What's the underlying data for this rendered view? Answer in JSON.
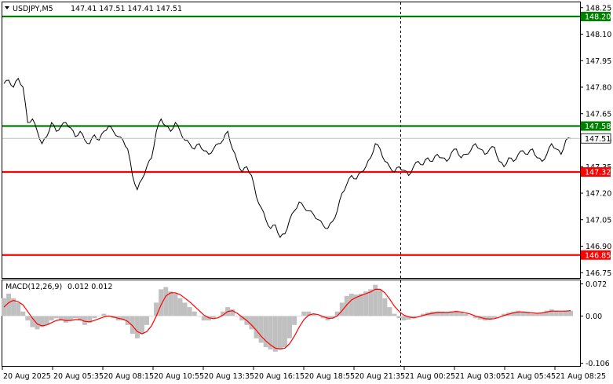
{
  "header": {
    "symbol_info": "USDJPY,M5",
    "ohlc": "147.41 147.51 147.41 147.51"
  },
  "macd": {
    "label": "MACD(12,26,9)",
    "values": "0.012 0.012"
  },
  "colors": {
    "price_line": "#000000",
    "resistance": "#008000",
    "support": "#ff0000",
    "macd_hist": "#c0c0c0",
    "signal": "#ff0000",
    "grid_separator": "#808080"
  },
  "chart_data": [
    {
      "type": "line",
      "title": "USDJPY,M5",
      "ylim": [
        146.72,
        148.28
      ],
      "y_ticks": [
        "148.25",
        "148.10",
        "147.95",
        "147.80",
        "147.65",
        "147.50",
        "147.35",
        "147.20",
        "147.05",
        "146.90",
        "146.75"
      ],
      "x_ticks": [
        "20 Aug 2025",
        "20 Aug 05:35",
        "20 Aug 08:15",
        "20 Aug 10:55",
        "20 Aug 13:35",
        "20 Aug 16:15",
        "20 Aug 18:55",
        "20 Aug 21:35",
        "21 Aug 00:25",
        "21 Aug 03:05",
        "21 Aug 05:45",
        "21 Aug 08:25"
      ],
      "series": [
        {
          "values": [
            147.82,
            147.84,
            147.8,
            147.85,
            147.8,
            147.6,
            147.62,
            147.55,
            147.48,
            147.52,
            147.6,
            147.55,
            147.58,
            147.6,
            147.57,
            147.52,
            147.55,
            147.5,
            147.48,
            147.53,
            147.5,
            147.55,
            147.58,
            147.55,
            147.52,
            147.5,
            147.45,
            147.3,
            147.22,
            147.28,
            147.35,
            147.4,
            147.55,
            147.62,
            147.58,
            147.55,
            147.6,
            147.55,
            147.5,
            147.48,
            147.45,
            147.48,
            147.44,
            147.42,
            147.45,
            147.48,
            147.5,
            147.55,
            147.45,
            147.38,
            147.32,
            147.35,
            147.3,
            147.18,
            147.12,
            147.05,
            147.0,
            147.02,
            146.95,
            146.97,
            147.05,
            147.1,
            147.15,
            147.12,
            147.1,
            147.08,
            147.05,
            147.02,
            147.0,
            147.04,
            147.1,
            147.2,
            147.25,
            147.3,
            147.28,
            147.32,
            147.35,
            147.4,
            147.48,
            147.45,
            147.38,
            147.35,
            147.32,
            147.35,
            147.33,
            147.3,
            147.35,
            147.38,
            147.36,
            147.4,
            147.38,
            147.42,
            147.4,
            147.38,
            147.43,
            147.45,
            147.4,
            147.42,
            147.44,
            147.48,
            147.45,
            147.42,
            147.45,
            147.46,
            147.38,
            147.35,
            147.4,
            147.38,
            147.42,
            147.44,
            147.42,
            147.45,
            147.4,
            147.38,
            147.42,
            147.48,
            147.45,
            147.42,
            147.5,
            147.51
          ],
          "highlights": [
            147.3,
            147.55,
            147.22,
            147.66,
            147.52,
            147.32,
            146.95,
            147.02,
            147.5,
            147.28,
            147.46,
            147.51
          ]
        }
      ],
      "levels": [
        {
          "label": "148.20",
          "value": 148.2,
          "color": "#008000"
        },
        {
          "label": "147.58",
          "value": 147.58,
          "color": "#008000"
        },
        {
          "label": "147.32",
          "value": 147.32,
          "color": "#ff0000"
        },
        {
          "label": "146.85",
          "value": 146.85,
          "color": "#ff0000"
        }
      ],
      "current_price_label": "147.51",
      "current_price": 147.51
    },
    {
      "type": "bar",
      "title": "MACD(12,26,9)",
      "ylim": [
        -0.112,
        0.08
      ],
      "y_ticks": [
        "0.072",
        "0.00",
        "-0.106"
      ],
      "series": [
        {
          "name": "histogram",
          "values": [
            0.04,
            0.05,
            0.04,
            0.03,
            0.01,
            -0.01,
            -0.025,
            -0.03,
            -0.025,
            -0.02,
            -0.01,
            -0.005,
            -0.01,
            -0.015,
            -0.01,
            -0.005,
            -0.01,
            -0.02,
            -0.015,
            -0.005,
            0.0,
            0.005,
            0.0,
            -0.005,
            -0.01,
            -0.01,
            -0.02,
            -0.04,
            -0.05,
            -0.04,
            -0.02,
            0.0,
            0.03,
            0.06,
            0.065,
            0.055,
            0.05,
            0.04,
            0.03,
            0.02,
            0.01,
            0.0,
            -0.01,
            -0.01,
            -0.005,
            0.0,
            0.01,
            0.02,
            0.015,
            0.0,
            -0.01,
            -0.02,
            -0.03,
            -0.05,
            -0.06,
            -0.07,
            -0.075,
            -0.08,
            -0.075,
            -0.07,
            -0.05,
            -0.02,
            0.0,
            0.01,
            0.01,
            0.005,
            0.0,
            -0.005,
            -0.01,
            -0.005,
            0.01,
            0.03,
            0.045,
            0.05,
            0.048,
            0.05,
            0.055,
            0.06,
            0.07,
            0.06,
            0.04,
            0.02,
            0.005,
            -0.005,
            -0.01,
            -0.008,
            -0.005,
            0.0,
            0.005,
            0.008,
            0.01,
            0.01,
            0.01,
            0.008,
            0.01,
            0.012,
            0.008,
            0.005,
            0.0,
            -0.005,
            -0.008,
            -0.01,
            -0.008,
            -0.005,
            0.0,
            0.005,
            0.008,
            0.01,
            0.012,
            0.01,
            0.008,
            0.005,
            0.005,
            0.008,
            0.012,
            0.015,
            0.012,
            0.01,
            0.012,
            0.012
          ]
        },
        {
          "name": "signal",
          "values": [
            0.02,
            0.03,
            0.035,
            0.032,
            0.025,
            0.01,
            -0.005,
            -0.018,
            -0.022,
            -0.02,
            -0.015,
            -0.01,
            -0.008,
            -0.01,
            -0.01,
            -0.008,
            -0.008,
            -0.012,
            -0.013,
            -0.01,
            -0.006,
            -0.002,
            0.0,
            -0.002,
            -0.005,
            -0.007,
            -0.012,
            -0.022,
            -0.035,
            -0.04,
            -0.035,
            -0.022,
            0.0,
            0.025,
            0.045,
            0.052,
            0.052,
            0.048,
            0.04,
            0.032,
            0.022,
            0.012,
            0.002,
            -0.004,
            -0.006,
            -0.004,
            0.002,
            0.01,
            0.012,
            0.006,
            -0.002,
            -0.01,
            -0.02,
            -0.032,
            -0.045,
            -0.056,
            -0.065,
            -0.072,
            -0.074,
            -0.072,
            -0.062,
            -0.045,
            -0.025,
            -0.008,
            0.002,
            0.005,
            0.003,
            -0.001,
            -0.005,
            -0.005,
            0.0,
            0.012,
            0.025,
            0.036,
            0.042,
            0.046,
            0.05,
            0.054,
            0.06,
            0.06,
            0.052,
            0.038,
            0.022,
            0.01,
            0.002,
            -0.002,
            -0.004,
            -0.002,
            0.001,
            0.004,
            0.006,
            0.008,
            0.008,
            0.008,
            0.009,
            0.01,
            0.009,
            0.007,
            0.004,
            0.0,
            -0.003,
            -0.006,
            -0.007,
            -0.006,
            -0.003,
            0.001,
            0.004,
            0.007,
            0.009,
            0.009,
            0.008,
            0.007,
            0.006,
            0.007,
            0.009,
            0.011,
            0.011,
            0.011,
            0.011,
            0.012
          ]
        }
      ]
    }
  ]
}
